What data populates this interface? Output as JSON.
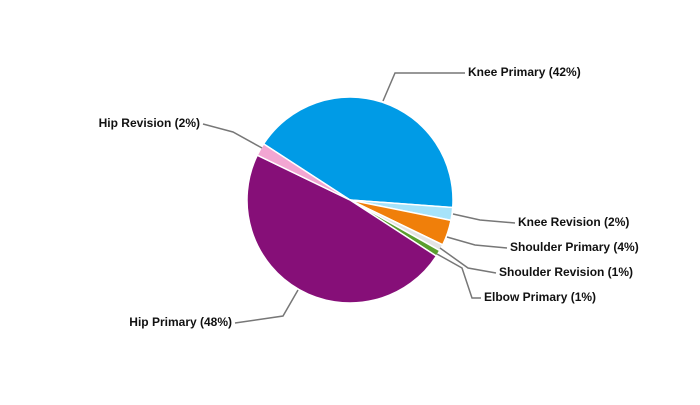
{
  "chart_data": {
    "type": "pie",
    "values": [
      42,
      2,
      4,
      1,
      1,
      48,
      2
    ],
    "value_labels": [
      "Knee Primary (42%)",
      "Knee Revision (2%)",
      "Shoulder Primary (4%)",
      "Shoulder Revision (1%)",
      "Elbow Primary (1%)",
      "Hip Primary (48%)",
      "Hip Revision (2%)"
    ],
    "colors": [
      "#009be6",
      "#a6e3fa",
      "#f07f0a",
      "#e4e4e4",
      "#5a9e2e",
      "#860f78",
      "#f2a6d2"
    ]
  }
}
